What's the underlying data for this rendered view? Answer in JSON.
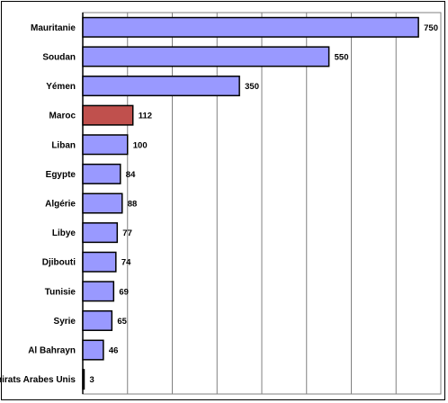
{
  "chart_data": {
    "type": "bar",
    "orientation": "horizontal",
    "categories": [
      "Mauritanie",
      "Soudan",
      "Yémen",
      "Maroc",
      "Liban",
      "Egypte",
      "Algérie",
      "Libye",
      "Djibouti",
      "Tunisie",
      "Syrie",
      "Al Bahrayn",
      "Emirats Arabes Unis"
    ],
    "values": [
      750,
      550,
      350,
      112,
      100,
      84,
      88,
      77,
      74,
      69,
      65,
      46,
      3
    ],
    "highlight_index": 3,
    "xlim": [
      0,
      800
    ],
    "grid": "vertical",
    "legend": "none",
    "title": "",
    "xlabel": "",
    "ylabel": ""
  },
  "colors": {
    "bar": "#9999ff",
    "highlight": "#c0504d",
    "grid": "#808080",
    "outline": "#000000"
  }
}
